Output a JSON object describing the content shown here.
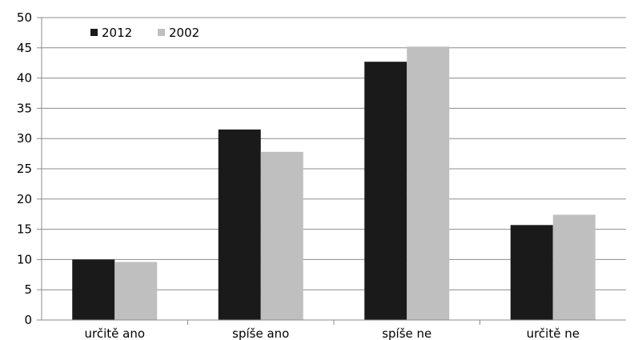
{
  "chart_data": {
    "type": "bar",
    "categories": [
      "určitě ano",
      "spíše ano",
      "spíše ne",
      "určitě ne"
    ],
    "series": [
      {
        "name": "2012",
        "values": [
          10.0,
          31.5,
          42.7,
          15.7
        ],
        "color": "#1a1a1a"
      },
      {
        "name": "2002",
        "values": [
          9.6,
          27.8,
          45.2,
          17.4
        ],
        "color": "#bfbfbf"
      }
    ],
    "y_ticks": [
      "0",
      "5",
      "10",
      "15",
      "20",
      "25",
      "30",
      "35",
      "40",
      "45",
      "50"
    ],
    "ylim": [
      0,
      50
    ],
    "grid": true,
    "legend_position": "top-left",
    "title": "",
    "xlabel": "",
    "ylabel": ""
  }
}
